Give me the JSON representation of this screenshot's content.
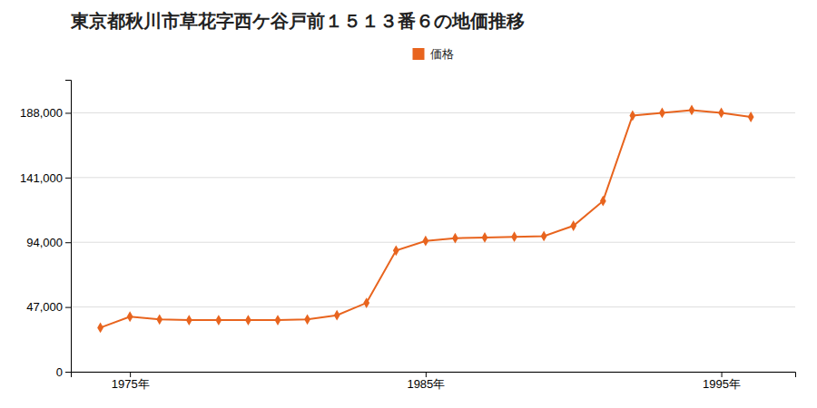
{
  "chart_data": {
    "type": "line",
    "title": "東京都秋川市草花字西ケ谷戸前１５１３番６の地価推移",
    "x": [
      1974,
      1975,
      1976,
      1977,
      1978,
      1979,
      1980,
      1981,
      1982,
      1983,
      1984,
      1985,
      1986,
      1987,
      1988,
      1989,
      1990,
      1991,
      1992,
      1993,
      1994,
      1995,
      1996
    ],
    "series": [
      {
        "name": "価格",
        "color": "#E8641E",
        "marker": "diamond",
        "values": [
          32000,
          40000,
          38000,
          37500,
          37500,
          37500,
          37500,
          38000,
          41000,
          50000,
          88000,
          95000,
          97000,
          97500,
          98000,
          98500,
          106000,
          124000,
          186000,
          188000,
          190000,
          188000,
          185000
        ]
      }
    ],
    "xlim": [
      1973.0,
      1997.5
    ],
    "xticks": [
      {
        "value": 1975,
        "label": "1975年"
      },
      {
        "value": 1985,
        "label": "1985年"
      },
      {
        "value": 1995,
        "label": "1995年"
      }
    ],
    "ylim": [
      0,
      212000
    ],
    "yticks": [
      0,
      {
        "value": 47000,
        "label": "47,000"
      },
      {
        "value": 94000,
        "label": "94,000"
      },
      {
        "value": 141000,
        "label": "141,000"
      },
      {
        "value": 188000,
        "label": "188,000"
      }
    ],
    "grid": true,
    "legend": "top"
  }
}
